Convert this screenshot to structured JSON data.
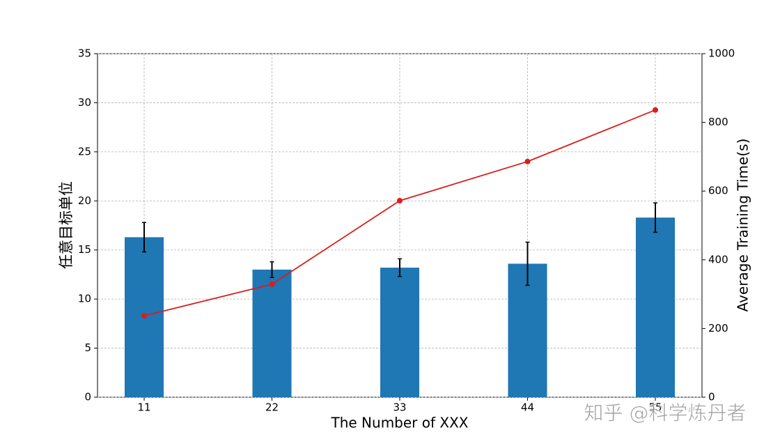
{
  "chart_data": {
    "type": "bar_line",
    "xlabel": "The Number of XXX",
    "ylabel": "任意目标单位",
    "y2label": "Average Training Time(s)",
    "categories": [
      "11",
      "22",
      "33",
      "44",
      "55"
    ],
    "series": [
      {
        "type": "bar",
        "color": "#1f77b4",
        "values": [
          16.3,
          13.0,
          13.2,
          13.6,
          18.3
        ],
        "errors": [
          1.5,
          0.8,
          0.9,
          2.2,
          1.5
        ]
      },
      {
        "type": "line",
        "axis": "y2",
        "color": "#d81e1e",
        "values": [
          237,
          329,
          572,
          686,
          836
        ]
      }
    ],
    "ylim": [
      0,
      35
    ],
    "yticks": [
      0,
      5,
      10,
      15,
      20,
      25,
      30,
      35
    ],
    "y2lim": [
      0,
      1000
    ],
    "y2ticks": [
      0,
      200,
      400,
      600,
      800,
      1000
    ],
    "grid": true,
    "watermark": "知乎 @科学炼丹者"
  }
}
